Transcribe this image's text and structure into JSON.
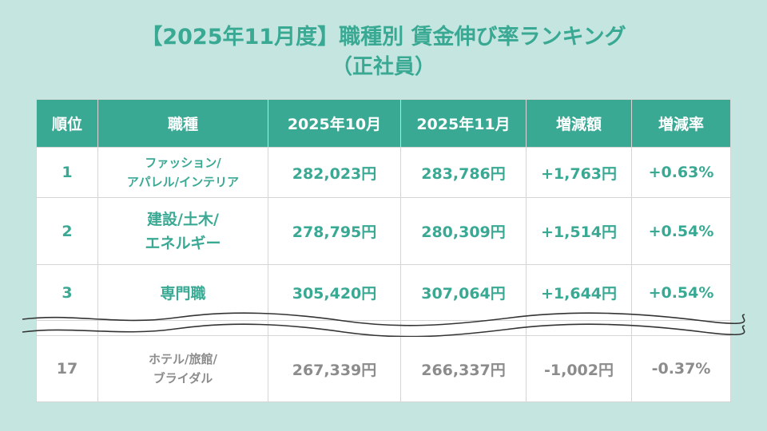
{
  "title": {
    "line1": "【2025年11月度】職種別 賃金伸び率ランキング",
    "line2": "（正社員）"
  },
  "table": {
    "headers": [
      "順位",
      "職種",
      "2025年10月",
      "2025年11月",
      "増減額",
      "増減率"
    ],
    "rows": [
      {
        "rank": "1",
        "job_line1": "ファッション/",
        "job_line2": "アパレル/インテリア",
        "oct": "282,023円",
        "nov": "283,786円",
        "diff": "+1,763円",
        "rate": "+0.63%"
      },
      {
        "rank": "2",
        "job_line1": "建設/土木/",
        "job_line2": "エネルギー",
        "oct": "278,795円",
        "nov": "280,309円",
        "diff": "+1,514円",
        "rate": "+0.54%"
      },
      {
        "rank": "3",
        "job_line1": "専門職",
        "job_line2": "",
        "oct": "305,420円",
        "nov": "307,064円",
        "diff": "+1,644円",
        "rate": "+0.54%"
      },
      {
        "rank": "17",
        "job_line1": "ホテル/旅館/",
        "job_line2": "ブライダル",
        "oct": "267,339円",
        "nov": "266,337円",
        "diff": "-1,002円",
        "rate": "-0.37%"
      }
    ]
  },
  "colors": {
    "accent": "#3aa994",
    "background": "#c5e6e0",
    "muted_text": "#8c8c8c"
  }
}
